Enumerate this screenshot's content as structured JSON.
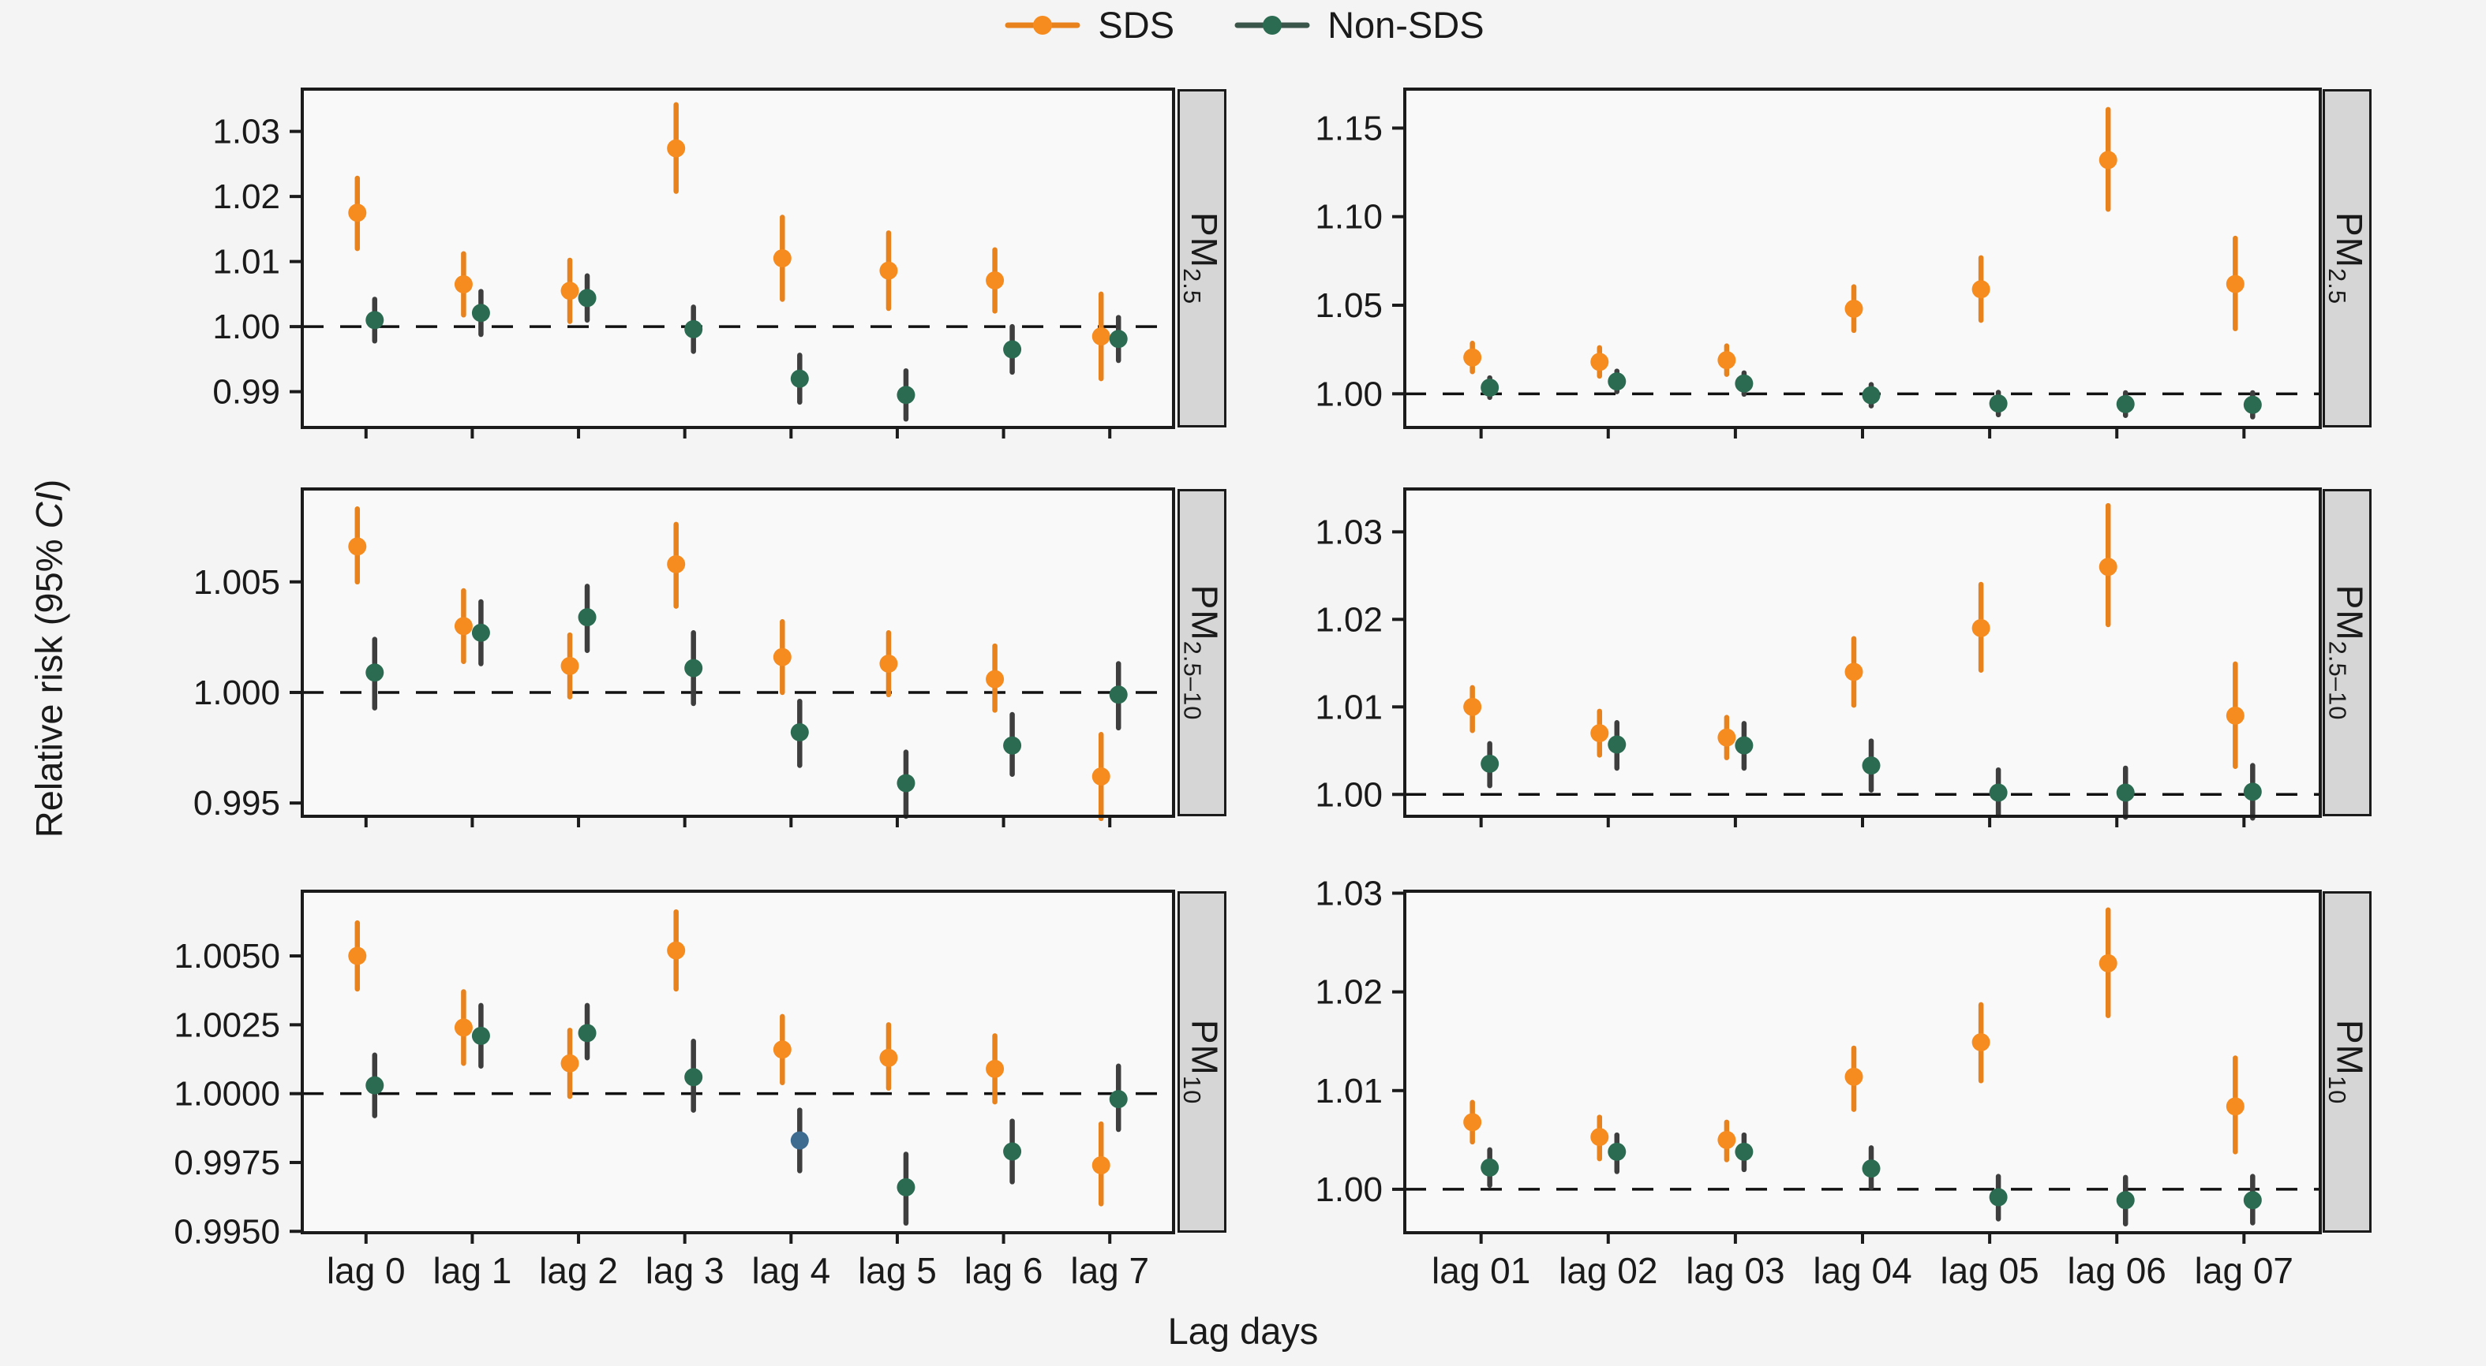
{
  "legend": {
    "items": [
      {
        "label": "SDS",
        "dot_color": "#f68b1f",
        "line_color": "#e8821c"
      },
      {
        "label": "Non-SDS",
        "dot_color": "#2b6b52",
        "line_color": "#3a554a"
      }
    ]
  },
  "axes": {
    "y_title_prefix": "Relative risk (95% ",
    "y_title_italic": "CI",
    "y_title_suffix": ")",
    "x_title": "Lag days"
  },
  "colors": {
    "page_bg": "#f4f4f4",
    "panel_bg": "#f9f9f9",
    "panel_border": "#1b1b1b",
    "strip_bg": "#d6d6d6",
    "ref_line": "#111111",
    "sds_dot": "#f68b1f",
    "sds_bar": "#e8821c",
    "nonsds_dot": "#2b6b52",
    "nonsds_bar": "#3e3e3e",
    "anomaly_dot": "#3d6c90"
  },
  "chart_data": [
    {
      "id": "pm25-left",
      "type": "pointrange",
      "grid": {
        "row": 0,
        "col": 0
      },
      "strip": {
        "base": "PM",
        "sub": "2.5"
      },
      "categories": [
        "lag 0",
        "lag 1",
        "lag 2",
        "lag 3",
        "lag 4",
        "lag 5",
        "lag 6",
        "lag 7"
      ],
      "ylim": [
        0.9845,
        1.0365
      ],
      "ref_y": 1.0,
      "yticks": [
        {
          "v": 0.99,
          "label": "0.99"
        },
        {
          "v": 1.0,
          "label": "1.00"
        },
        {
          "v": 1.01,
          "label": "1.01"
        },
        {
          "v": 1.02,
          "label": "1.02"
        },
        {
          "v": 1.03,
          "label": "1.03"
        }
      ],
      "series": [
        {
          "name": "SDS",
          "dot_color": "#f68b1f",
          "bar_color": "#e8821c",
          "points": [
            {
              "x": "lag 0",
              "y": 1.0175,
              "lo": 1.012,
              "hi": 1.0228
            },
            {
              "x": "lag 1",
              "y": 1.0065,
              "lo": 1.0018,
              "hi": 1.0112
            },
            {
              "x": "lag 2",
              "y": 1.0055,
              "lo": 1.0008,
              "hi": 1.0102
            },
            {
              "x": "lag 3",
              "y": 1.0274,
              "lo": 1.0208,
              "hi": 1.0341
            },
            {
              "x": "lag 4",
              "y": 1.0105,
              "lo": 1.0042,
              "hi": 1.0168
            },
            {
              "x": "lag 5",
              "y": 1.0086,
              "lo": 1.0028,
              "hi": 1.0144
            },
            {
              "x": "lag 6",
              "y": 1.0071,
              "lo": 1.0024,
              "hi": 1.0118
            },
            {
              "x": "lag 7",
              "y": 0.9985,
              "lo": 0.992,
              "hi": 1.005
            }
          ]
        },
        {
          "name": "Non-SDS",
          "dot_color": "#2b6b52",
          "bar_color": "#3e3e3e",
          "points": [
            {
              "x": "lag 0",
              "y": 1.001,
              "lo": 0.9978,
              "hi": 1.0042
            },
            {
              "x": "lag 1",
              "y": 1.0021,
              "lo": 0.9988,
              "hi": 1.0054
            },
            {
              "x": "lag 2",
              "y": 1.0044,
              "lo": 1.001,
              "hi": 1.0078
            },
            {
              "x": "lag 3",
              "y": 0.9996,
              "lo": 0.9962,
              "hi": 1.003
            },
            {
              "x": "lag 4",
              "y": 0.992,
              "lo": 0.9884,
              "hi": 0.9956
            },
            {
              "x": "lag 5",
              "y": 0.9895,
              "lo": 0.9858,
              "hi": 0.9932
            },
            {
              "x": "lag 6",
              "y": 0.9965,
              "lo": 0.993,
              "hi": 1.0
            },
            {
              "x": "lag 7",
              "y": 0.9981,
              "lo": 0.9948,
              "hi": 1.0014
            }
          ]
        }
      ]
    },
    {
      "id": "pm25-right",
      "type": "pointrange",
      "grid": {
        "row": 0,
        "col": 1
      },
      "strip": {
        "base": "PM",
        "sub": "2.5"
      },
      "categories": [
        "lag 01",
        "lag 02",
        "lag 03",
        "lag 04",
        "lag 05",
        "lag 06",
        "lag 07"
      ],
      "ylim": [
        0.981,
        1.172
      ],
      "ref_y": 1.0,
      "yticks": [
        {
          "v": 1.0,
          "label": "1.00"
        },
        {
          "v": 1.05,
          "label": "1.05"
        },
        {
          "v": 1.1,
          "label": "1.10"
        },
        {
          "v": 1.15,
          "label": "1.15"
        }
      ],
      "series": [
        {
          "name": "SDS",
          "dot_color": "#f68b1f",
          "bar_color": "#e8821c",
          "points": [
            {
              "x": "lag 01",
              "y": 1.0205,
              "lo": 1.0125,
              "hi": 1.0285
            },
            {
              "x": "lag 02",
              "y": 1.018,
              "lo": 1.01,
              "hi": 1.026
            },
            {
              "x": "lag 03",
              "y": 1.019,
              "lo": 1.011,
              "hi": 1.027
            },
            {
              "x": "lag 04",
              "y": 1.048,
              "lo": 1.0358,
              "hi": 1.0604
            },
            {
              "x": "lag 05",
              "y": 1.059,
              "lo": 1.0415,
              "hi": 1.0768
            },
            {
              "x": "lag 06",
              "y": 1.132,
              "lo": 1.1042,
              "hi": 1.1605
            },
            {
              "x": "lag 07",
              "y": 1.062,
              "lo": 1.0368,
              "hi": 1.0878
            }
          ]
        },
        {
          "name": "Non-SDS",
          "dot_color": "#2b6b52",
          "bar_color": "#3e3e3e",
          "points": [
            {
              "x": "lag 01",
              "y": 1.0035,
              "lo": 0.998,
              "hi": 1.009
            },
            {
              "x": "lag 02",
              "y": 1.007,
              "lo": 1.0012,
              "hi": 1.0128
            },
            {
              "x": "lag 03",
              "y": 1.0058,
              "lo": 0.9998,
              "hi": 1.0118
            },
            {
              "x": "lag 04",
              "y": 0.9992,
              "lo": 0.9932,
              "hi": 1.0052
            },
            {
              "x": "lag 05",
              "y": 0.9945,
              "lo": 0.9882,
              "hi": 1.0008
            },
            {
              "x": "lag 06",
              "y": 0.9942,
              "lo": 0.9878,
              "hi": 1.0006
            },
            {
              "x": "lag 07",
              "y": 0.9938,
              "lo": 0.987,
              "hi": 1.0006
            }
          ]
        }
      ]
    },
    {
      "id": "pm25-10-left",
      "type": "pointrange",
      "grid": {
        "row": 1,
        "col": 0
      },
      "strip": {
        "base": "PM",
        "sub": "2.5–10"
      },
      "categories": [
        "lag 0",
        "lag 1",
        "lag 2",
        "lag 3",
        "lag 4",
        "lag 5",
        "lag 6",
        "lag 7"
      ],
      "ylim": [
        0.9944,
        1.0092
      ],
      "ref_y": 1.0,
      "yticks": [
        {
          "v": 0.995,
          "label": "0.995"
        },
        {
          "v": 1.0,
          "label": "1.000"
        },
        {
          "v": 1.005,
          "label": "1.005"
        }
      ],
      "series": [
        {
          "name": "SDS",
          "dot_color": "#f68b1f",
          "bar_color": "#e8821c",
          "points": [
            {
              "x": "lag 0",
              "y": 1.0066,
              "lo": 1.005,
              "hi": 1.0083
            },
            {
              "x": "lag 1",
              "y": 1.003,
              "lo": 1.0014,
              "hi": 1.0046
            },
            {
              "x": "lag 2",
              "y": 1.0012,
              "lo": 0.9998,
              "hi": 1.0026
            },
            {
              "x": "lag 3",
              "y": 1.0058,
              "lo": 1.0039,
              "hi": 1.0076
            },
            {
              "x": "lag 4",
              "y": 1.0016,
              "lo": 1.0,
              "hi": 1.0032
            },
            {
              "x": "lag 5",
              "y": 1.0013,
              "lo": 0.9999,
              "hi": 1.0027
            },
            {
              "x": "lag 6",
              "y": 1.0006,
              "lo": 0.9992,
              "hi": 1.0021
            },
            {
              "x": "lag 7",
              "y": 0.9962,
              "lo": 0.9943,
              "hi": 0.9981
            }
          ]
        },
        {
          "name": "Non-SDS",
          "dot_color": "#2b6b52",
          "bar_color": "#3e3e3e",
          "points": [
            {
              "x": "lag 0",
              "y": 1.0009,
              "lo": 0.9993,
              "hi": 1.0024
            },
            {
              "x": "lag 1",
              "y": 1.0027,
              "lo": 1.0013,
              "hi": 1.0041
            },
            {
              "x": "lag 2",
              "y": 1.0034,
              "lo": 1.0019,
              "hi": 1.0048
            },
            {
              "x": "lag 3",
              "y": 1.0011,
              "lo": 0.9995,
              "hi": 1.0027
            },
            {
              "x": "lag 4",
              "y": 0.9982,
              "lo": 0.9967,
              "hi": 0.9996
            },
            {
              "x": "lag 5",
              "y": 0.9959,
              "lo": 0.9944,
              "hi": 0.9973
            },
            {
              "x": "lag 6",
              "y": 0.9976,
              "lo": 0.9963,
              "hi": 0.999
            },
            {
              "x": "lag 7",
              "y": 0.9999,
              "lo": 0.9984,
              "hi": 1.0013
            }
          ]
        }
      ]
    },
    {
      "id": "pm25-10-right",
      "type": "pointrange",
      "grid": {
        "row": 1,
        "col": 1
      },
      "strip": {
        "base": "PM",
        "sub": "2.5–10"
      },
      "categories": [
        "lag 01",
        "lag 02",
        "lag 03",
        "lag 04",
        "lag 05",
        "lag 06",
        "lag 07"
      ],
      "ylim": [
        0.9975,
        1.0349
      ],
      "ref_y": 1.0,
      "yticks": [
        {
          "v": 1.0,
          "label": "1.00"
        },
        {
          "v": 1.01,
          "label": "1.01"
        },
        {
          "v": 1.02,
          "label": "1.02"
        },
        {
          "v": 1.03,
          "label": "1.03"
        }
      ],
      "series": [
        {
          "name": "SDS",
          "dot_color": "#f68b1f",
          "bar_color": "#e8821c",
          "points": [
            {
              "x": "lag 01",
              "y": 1.01,
              "lo": 1.0073,
              "hi": 1.0122
            },
            {
              "x": "lag 02",
              "y": 1.007,
              "lo": 1.0045,
              "hi": 1.0095
            },
            {
              "x": "lag 03",
              "y": 1.0065,
              "lo": 1.0042,
              "hi": 1.0088
            },
            {
              "x": "lag 04",
              "y": 1.014,
              "lo": 1.0102,
              "hi": 1.0178
            },
            {
              "x": "lag 05",
              "y": 1.019,
              "lo": 1.0142,
              "hi": 1.024
            },
            {
              "x": "lag 06",
              "y": 1.026,
              "lo": 1.0194,
              "hi": 1.033
            },
            {
              "x": "lag 07",
              "y": 1.009,
              "lo": 1.0032,
              "hi": 1.0149
            }
          ]
        },
        {
          "name": "Non-SDS",
          "dot_color": "#2b6b52",
          "bar_color": "#3e3e3e",
          "points": [
            {
              "x": "lag 01",
              "y": 1.0035,
              "lo": 1.001,
              "hi": 1.0058
            },
            {
              "x": "lag 02",
              "y": 1.0057,
              "lo": 1.003,
              "hi": 1.0082
            },
            {
              "x": "lag 03",
              "y": 1.0056,
              "lo": 1.003,
              "hi": 1.0081
            },
            {
              "x": "lag 04",
              "y": 1.0033,
              "lo": 1.0005,
              "hi": 1.0061
            },
            {
              "x": "lag 05",
              "y": 1.0002,
              "lo": 0.9976,
              "hi": 1.0028
            },
            {
              "x": "lag 06",
              "y": 1.0002,
              "lo": 0.9974,
              "hi": 1.003
            },
            {
              "x": "lag 07",
              "y": 1.0003,
              "lo": 0.9973,
              "hi": 1.0033
            }
          ]
        }
      ]
    },
    {
      "id": "pm10-left",
      "type": "pointrange",
      "grid": {
        "row": 2,
        "col": 0
      },
      "strip": {
        "base": "PM",
        "sub": "10"
      },
      "categories": [
        "lag 0",
        "lag 1",
        "lag 2",
        "lag 3",
        "lag 4",
        "lag 5",
        "lag 6",
        "lag 7"
      ],
      "ylim": [
        0.99495,
        1.00735
      ],
      "ref_y": 1.0,
      "yticks": [
        {
          "v": 0.995,
          "label": "0.9950"
        },
        {
          "v": 0.9975,
          "label": "0.9975"
        },
        {
          "v": 1.0,
          "label": "1.0000"
        },
        {
          "v": 1.0025,
          "label": "1.0025"
        },
        {
          "v": 1.005,
          "label": "1.0050"
        }
      ],
      "series": [
        {
          "name": "SDS",
          "dot_color": "#f68b1f",
          "bar_color": "#e8821c",
          "points": [
            {
              "x": "lag 0",
              "y": 1.005,
              "lo": 1.0038,
              "hi": 1.0062
            },
            {
              "x": "lag 1",
              "y": 1.0024,
              "lo": 1.0011,
              "hi": 1.0037
            },
            {
              "x": "lag 2",
              "y": 1.0011,
              "lo": 0.9999,
              "hi": 1.0023
            },
            {
              "x": "lag 3",
              "y": 1.0052,
              "lo": 1.0038,
              "hi": 1.0066
            },
            {
              "x": "lag 4",
              "y": 1.0016,
              "lo": 1.0004,
              "hi": 1.0028
            },
            {
              "x": "lag 5",
              "y": 1.0013,
              "lo": 1.0002,
              "hi": 1.0025
            },
            {
              "x": "lag 6",
              "y": 1.0009,
              "lo": 0.9997,
              "hi": 1.0021
            },
            {
              "x": "lag 7",
              "y": 0.9974,
              "lo": 0.996,
              "hi": 0.9989
            }
          ]
        },
        {
          "name": "Non-SDS",
          "dot_color": "#2b6b52",
          "bar_color": "#3e3e3e",
          "points": [
            {
              "x": "lag 0",
              "y": 1.0003,
              "lo": 0.9992,
              "hi": 1.0014
            },
            {
              "x": "lag 1",
              "y": 1.0021,
              "lo": 1.001,
              "hi": 1.0032
            },
            {
              "x": "lag 2",
              "y": 1.0022,
              "lo": 1.0013,
              "hi": 1.0032
            },
            {
              "x": "lag 3",
              "y": 1.0006,
              "lo": 0.9994,
              "hi": 1.0019
            },
            {
              "x": "lag 4",
              "y": 0.9983,
              "lo": 0.9972,
              "hi": 0.9994,
              "dot_color": "#3d6c90"
            },
            {
              "x": "lag 5",
              "y": 0.9966,
              "lo": 0.9953,
              "hi": 0.9978
            },
            {
              "x": "lag 6",
              "y": 0.9979,
              "lo": 0.9968,
              "hi": 0.999
            },
            {
              "x": "lag 7",
              "y": 0.9998,
              "lo": 0.9987,
              "hi": 1.001
            }
          ]
        }
      ]
    },
    {
      "id": "pm10-right",
      "type": "pointrange",
      "grid": {
        "row": 2,
        "col": 1
      },
      "strip": {
        "base": "PM",
        "sub": "10"
      },
      "categories": [
        "lag 01",
        "lag 02",
        "lag 03",
        "lag 04",
        "lag 05",
        "lag 06",
        "lag 07"
      ],
      "ylim": [
        0.9956,
        1.0302
      ],
      "ref_y": 1.0,
      "yticks": [
        {
          "v": 1.0,
          "label": "1.00"
        },
        {
          "v": 1.01,
          "label": "1.01"
        },
        {
          "v": 1.02,
          "label": "1.02"
        },
        {
          "v": 1.03,
          "label": "1.03"
        }
      ],
      "series": [
        {
          "name": "SDS",
          "dot_color": "#f68b1f",
          "bar_color": "#e8821c",
          "points": [
            {
              "x": "lag 01",
              "y": 1.0068,
              "lo": 1.0048,
              "hi": 1.0088
            },
            {
              "x": "lag 02",
              "y": 1.0053,
              "lo": 1.0031,
              "hi": 1.0073
            },
            {
              "x": "lag 03",
              "y": 1.005,
              "lo": 1.003,
              "hi": 1.0068
            },
            {
              "x": "lag 04",
              "y": 1.0114,
              "lo": 1.0081,
              "hi": 1.0143
            },
            {
              "x": "lag 05",
              "y": 1.0149,
              "lo": 1.011,
              "hi": 1.0187
            },
            {
              "x": "lag 06",
              "y": 1.0229,
              "lo": 1.0176,
              "hi": 1.0283
            },
            {
              "x": "lag 07",
              "y": 1.0084,
              "lo": 1.0038,
              "hi": 1.0133
            }
          ]
        },
        {
          "name": "Non-SDS",
          "dot_color": "#2b6b52",
          "bar_color": "#3e3e3e",
          "points": [
            {
              "x": "lag 01",
              "y": 1.0022,
              "lo": 1.0004,
              "hi": 1.004
            },
            {
              "x": "lag 02",
              "y": 1.0038,
              "lo": 1.0018,
              "hi": 1.0055
            },
            {
              "x": "lag 03",
              "y": 1.0038,
              "lo": 1.002,
              "hi": 1.0055
            },
            {
              "x": "lag 04",
              "y": 1.0021,
              "lo": 1.0002,
              "hi": 1.0042
            },
            {
              "x": "lag 05",
              "y": 0.9992,
              "lo": 0.997,
              "hi": 1.0013
            },
            {
              "x": "lag 06",
              "y": 0.9989,
              "lo": 0.9965,
              "hi": 1.0012
            },
            {
              "x": "lag 07",
              "y": 0.9989,
              "lo": 0.9966,
              "hi": 1.0013
            }
          ]
        }
      ]
    }
  ]
}
